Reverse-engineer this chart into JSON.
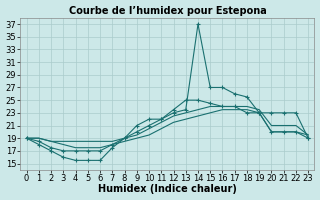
{
  "title": "Courbe de l’humidex pour Estepona",
  "xlabel": "Humidex (Indice chaleur)",
  "background_color": "#cce8e8",
  "grid_color": "#aacccc",
  "line_color": "#1a7070",
  "xlim": [
    -0.5,
    23.5
  ],
  "ylim": [
    14,
    38
  ],
  "yticks": [
    15,
    17,
    19,
    21,
    23,
    25,
    27,
    29,
    31,
    33,
    35,
    37
  ],
  "xticks": [
    0,
    1,
    2,
    3,
    4,
    5,
    6,
    7,
    8,
    9,
    10,
    11,
    12,
    13,
    14,
    15,
    16,
    17,
    18,
    19,
    20,
    21,
    22,
    23
  ],
  "lines": [
    {
      "x": [
        0,
        1,
        2,
        3,
        4,
        5,
        6,
        7,
        8,
        9,
        10,
        11,
        12,
        13,
        14,
        15,
        16,
        17,
        18,
        19,
        20,
        21,
        22,
        23
      ],
      "y": [
        19,
        18.5,
        17.5,
        17,
        17,
        17,
        17,
        18,
        19,
        20,
        21,
        22,
        23,
        23.5,
        37,
        27,
        27,
        26,
        25.5,
        23,
        20,
        20,
        20,
        19
      ],
      "marker": true
    },
    {
      "x": [
        0,
        1,
        2,
        3,
        4,
        5,
        6,
        7,
        8,
        9,
        10,
        11,
        12,
        13,
        14,
        15,
        16,
        17,
        18,
        19,
        20,
        21,
        22,
        23
      ],
      "y": [
        19,
        18,
        17,
        16,
        15.5,
        15.5,
        15.5,
        17.5,
        19,
        21,
        22,
        22,
        23.5,
        25,
        25,
        24.5,
        24,
        24,
        23,
        23,
        23,
        23,
        23,
        19
      ],
      "marker": true
    },
    {
      "x": [
        0,
        1,
        2,
        3,
        4,
        5,
        6,
        7,
        8,
        9,
        10,
        11,
        12,
        13,
        14,
        15,
        16,
        17,
        18,
        19,
        20,
        21,
        22,
        23
      ],
      "y": [
        19,
        19,
        18.5,
        18.5,
        18.5,
        18.5,
        18.5,
        18.5,
        19,
        19.5,
        20.5,
        21.5,
        22.5,
        23,
        23.5,
        24,
        24,
        24,
        24,
        23.5,
        21,
        21,
        21,
        19.5
      ],
      "marker": false
    },
    {
      "x": [
        0,
        1,
        2,
        3,
        4,
        5,
        6,
        7,
        8,
        9,
        10,
        11,
        12,
        13,
        14,
        15,
        16,
        17,
        18,
        19,
        20,
        21,
        22,
        23
      ],
      "y": [
        19,
        19,
        18.5,
        18,
        17.5,
        17.5,
        17.5,
        18,
        18.5,
        19,
        19.5,
        20.5,
        21.5,
        22,
        22.5,
        23,
        23.5,
        23.5,
        23.5,
        23,
        20,
        20,
        20,
        19.5
      ],
      "marker": false
    }
  ],
  "title_fontsize": 7,
  "xlabel_fontsize": 7,
  "tick_labelsize": 6
}
